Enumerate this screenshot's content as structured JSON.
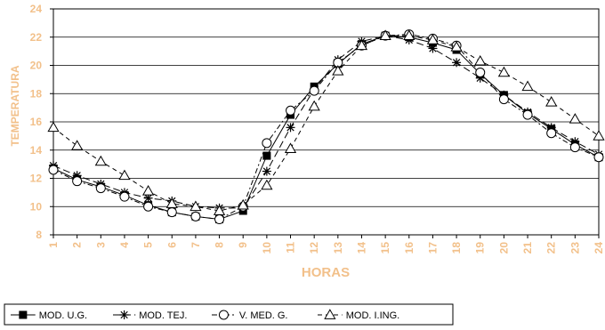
{
  "chart_data": {
    "type": "line",
    "xlabel": "HORAS",
    "ylabel": "TEMPERATURA",
    "x": [
      1,
      2,
      3,
      4,
      5,
      6,
      7,
      8,
      9,
      10,
      11,
      12,
      13,
      14,
      15,
      16,
      17,
      18,
      19,
      20,
      21,
      22,
      23,
      24
    ],
    "xlim": [
      1,
      24
    ],
    "ylim": [
      8,
      24
    ],
    "yticks": [
      8,
      10,
      12,
      14,
      16,
      18,
      20,
      22,
      24
    ],
    "grid": "horizontal",
    "legend_position": "bottom",
    "series": [
      {
        "name": "MOD. U.G.",
        "marker": "filled-square",
        "dash": "solid",
        "values": [
          12.7,
          11.9,
          11.4,
          10.8,
          10.1,
          9.6,
          9.3,
          9.1,
          9.7,
          13.6,
          16.5,
          18.5,
          20.1,
          21.5,
          22.1,
          22.0,
          21.6,
          21.1,
          19.4,
          17.9,
          16.6,
          15.5,
          14.4,
          13.5
        ]
      },
      {
        "name": "MOD. TEJ.",
        "marker": "star",
        "dash": "long-dash",
        "values": [
          12.9,
          12.2,
          11.6,
          11.0,
          10.6,
          10.4,
          10.0,
          9.9,
          9.9,
          12.5,
          15.6,
          18.3,
          20.4,
          21.7,
          22.1,
          21.8,
          21.2,
          20.2,
          19.1,
          17.9,
          16.7,
          15.6,
          14.6,
          13.7
        ]
      },
      {
        "name": "V. MED. G.",
        "marker": "open-circle",
        "dash": "dash-dot",
        "values": [
          12.6,
          11.8,
          11.3,
          10.7,
          10.0,
          9.6,
          9.3,
          9.1,
          10.0,
          14.5,
          16.8,
          18.2,
          20.2,
          21.4,
          22.1,
          22.2,
          21.9,
          21.4,
          19.5,
          17.6,
          16.5,
          15.2,
          14.2,
          13.5
        ]
      },
      {
        "name": "MOD. I.ING.",
        "marker": "open-triangle",
        "dash": "dash",
        "values": [
          15.6,
          14.3,
          13.2,
          12.2,
          11.1,
          10.2,
          10.0,
          9.7,
          10.1,
          11.5,
          14.1,
          17.1,
          19.6,
          21.4,
          22.1,
          22.1,
          21.8,
          21.3,
          20.3,
          19.5,
          18.5,
          17.4,
          16.2,
          15.0
        ]
      }
    ]
  }
}
